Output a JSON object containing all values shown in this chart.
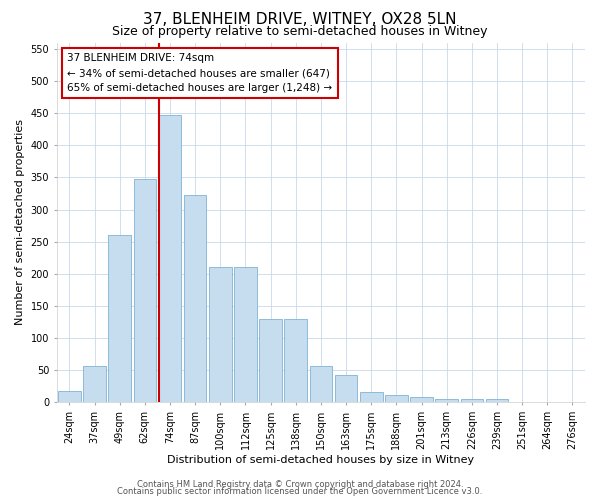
{
  "title": "37, BLENHEIM DRIVE, WITNEY, OX28 5LN",
  "subtitle": "Size of property relative to semi-detached houses in Witney",
  "xlabel": "Distribution of semi-detached houses by size in Witney",
  "ylabel": "Number of semi-detached properties",
  "bar_labels": [
    "24sqm",
    "37sqm",
    "49sqm",
    "62sqm",
    "74sqm",
    "87sqm",
    "100sqm",
    "112sqm",
    "125sqm",
    "138sqm",
    "150sqm",
    "163sqm",
    "175sqm",
    "188sqm",
    "201sqm",
    "213sqm",
    "226sqm",
    "239sqm",
    "251sqm",
    "264sqm",
    "276sqm"
  ],
  "bar_values": [
    18,
    57,
    260,
    347,
    447,
    323,
    210,
    210,
    130,
    130,
    57,
    42,
    17,
    12,
    8,
    5,
    5,
    5,
    1,
    1,
    1
  ],
  "bar_color": "#c6ddf0",
  "bar_edge_color": "#7fb3d3",
  "vline_color": "#cc0000",
  "annotation_title": "37 BLENHEIM DRIVE: 74sqm",
  "annotation_line1": "← 34% of semi-detached houses are smaller (647)",
  "annotation_line2": "65% of semi-detached houses are larger (1,248) →",
  "annotation_box_color": "#ffffff",
  "annotation_box_edge": "#cc0000",
  "ylim": [
    0,
    560
  ],
  "yticks": [
    0,
    50,
    100,
    150,
    200,
    250,
    300,
    350,
    400,
    450,
    500,
    550
  ],
  "footer1": "Contains HM Land Registry data © Crown copyright and database right 2024.",
  "footer2": "Contains public sector information licensed under the Open Government Licence v3.0.",
  "bg_color": "#ffffff",
  "grid_color": "#c8d8ea",
  "title_fontsize": 11,
  "subtitle_fontsize": 9,
  "axis_label_fontsize": 8,
  "tick_fontsize": 7,
  "footer_fontsize": 6,
  "annotation_fontsize": 7.5
}
